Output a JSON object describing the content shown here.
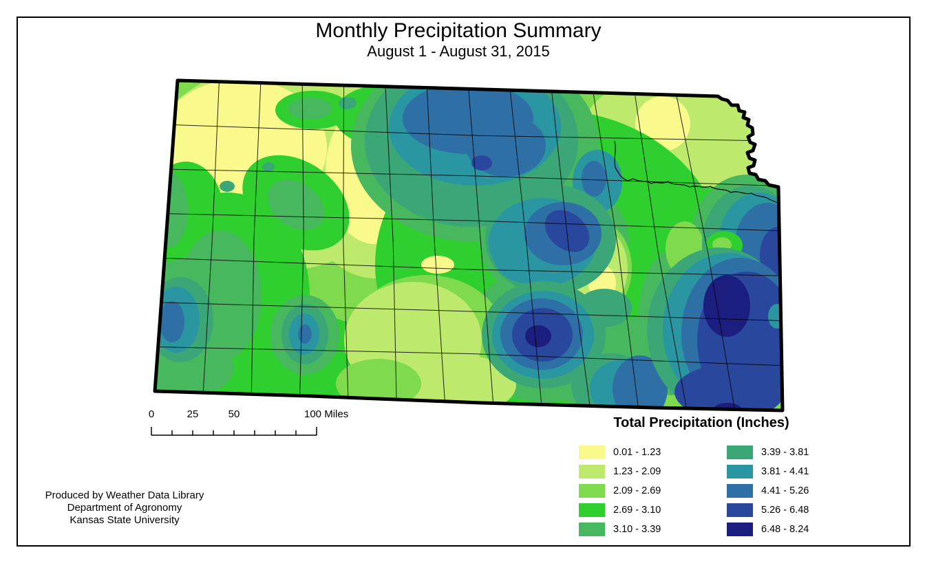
{
  "title": "Monthly Precipitation Summary",
  "subtitle": "August 1 - August 31, 2015",
  "map": {
    "region": "Kansas",
    "legend": {
      "title": "Total Precipitation (Inches)",
      "items": [
        {
          "label": "0.01 - 1.23",
          "color": "#FAFA8C"
        },
        {
          "label": "1.23 - 2.09",
          "color": "#BDE96D"
        },
        {
          "label": "2.09 - 2.69",
          "color": "#7FDB4D"
        },
        {
          "label": "2.69 - 3.10",
          "color": "#2FCF2F"
        },
        {
          "label": "3.10 - 3.39",
          "color": "#48B85E"
        },
        {
          "label": "3.39 - 3.81",
          "color": "#3BA777"
        },
        {
          "label": "3.81 - 4.41",
          "color": "#2A96A2"
        },
        {
          "label": "4.41 - 5.26",
          "color": "#2E6FA5"
        },
        {
          "label": "5.26 - 6.48",
          "color": "#2A479E"
        },
        {
          "label": "6.48 - 8.24",
          "color": "#1B1D7F"
        }
      ]
    },
    "scalebar": {
      "tick_0": "0",
      "tick_25": "25",
      "tick_50": "50",
      "tick_100": "100 Miles"
    }
  },
  "credits": {
    "line1": "Produced by Weather Data Library",
    "line2": "Department of Agronomy",
    "line3": "Kansas State University"
  }
}
